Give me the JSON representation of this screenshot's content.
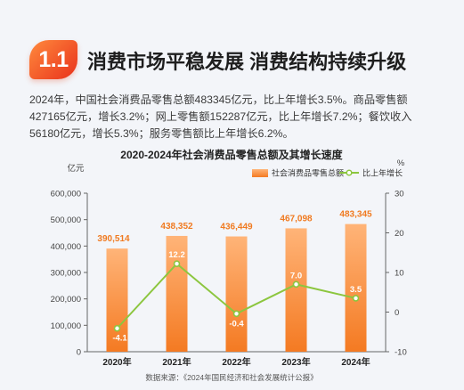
{
  "section": {
    "number": "1.1",
    "title": "消费市场平稳发展 消费结构持续升级"
  },
  "paragraph": "2024年，中国社会消费品零售总额483345亿元，比上年增长3.5%。商品零售额427165亿元，增长3.2%；网上零售额152287亿元，比上年增长7.2%；餐饮收入56180亿元，增长5.3%；服务零售额比上年增长6.2%。",
  "colors": {
    "bar_top": "#ffb478",
    "bar_bottom": "#f47a22",
    "line": "#8cc63f",
    "value_label": "#f07a20",
    "badge_start": "#ff8a3d",
    "badge_end": "#e9311b"
  },
  "chart_data": {
    "type": "bar",
    "title": "2020-2024年社会消费品零售总额及其增长速度",
    "categories": [
      "2020年",
      "2021年",
      "2022年",
      "2023年",
      "2024年"
    ],
    "series": [
      {
        "name": "社会消费品零售总额",
        "type": "bar",
        "axis": "left",
        "values": [
          390514,
          438352,
          436449,
          467098,
          483345
        ],
        "labels": [
          "390,514",
          "438,352",
          "436,449",
          "467,098",
          "483,345"
        ]
      },
      {
        "name": "比上年增长",
        "type": "line",
        "axis": "right",
        "values": [
          -4.1,
          12.2,
          -0.4,
          7.0,
          3.5
        ],
        "labels": [
          "-4.1",
          "12.2",
          "-0.4",
          "7.0",
          "3.5"
        ]
      }
    ],
    "y_left": {
      "unit": "亿元",
      "range": [
        0,
        600000
      ],
      "ticks": [
        0,
        100000,
        200000,
        300000,
        400000,
        500000,
        600000
      ],
      "tick_labels": [
        "0",
        "100,000",
        "200,000",
        "300,000",
        "400,000",
        "500,000",
        "600,000"
      ]
    },
    "y_right": {
      "unit": "%",
      "range": [
        -10,
        30
      ],
      "ticks": [
        -10,
        0,
        10,
        20,
        30
      ],
      "tick_labels": [
        "-10",
        "0",
        "10",
        "20",
        "30"
      ]
    },
    "legend_position": "top-right",
    "grid": false,
    "source": "数据来源：《2024年国民经济和社会发展统计公报》"
  }
}
